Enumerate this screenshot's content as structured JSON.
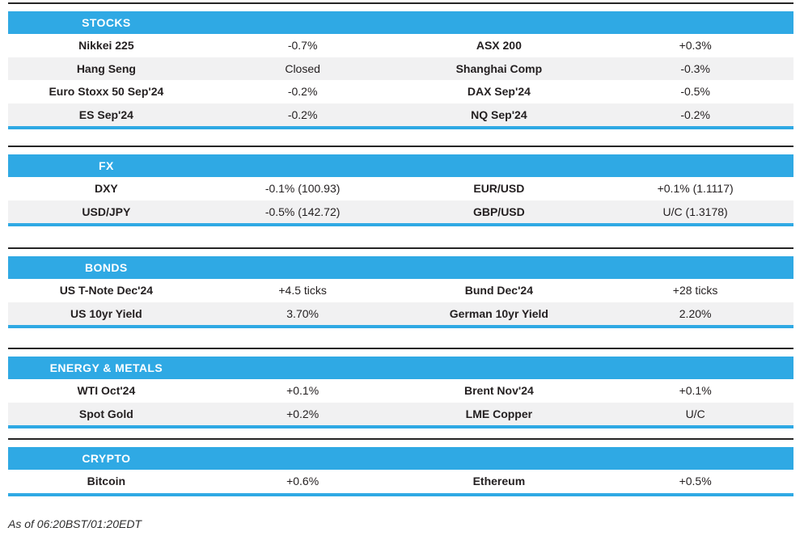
{
  "page": {
    "as_of": "As of 06:20BST/01:20EDT"
  },
  "colors": {
    "accent_blue": "#2fa9e4",
    "row_alt_gray": "#f1f1f2",
    "top_rule_dark": "#252525",
    "text_dark": "#231f20",
    "header_text": "#ffffff"
  },
  "sections": [
    {
      "id": "stocks",
      "title": "STOCKS",
      "rows": [
        {
          "l_label": "Nikkei 225",
          "l_value": "-0.7%",
          "r_label": "ASX 200",
          "r_value": "+0.3%"
        },
        {
          "l_label": "Hang Seng",
          "l_value": "Closed",
          "r_label": "Shanghai Comp",
          "r_value": "-0.3%"
        },
        {
          "l_label": "Euro Stoxx 50 Sep'24",
          "l_value": "-0.2%",
          "r_label": "DAX Sep'24",
          "r_value": "-0.5%"
        },
        {
          "l_label": "ES Sep'24",
          "l_value": "-0.2%",
          "r_label": "NQ Sep'24",
          "r_value": "-0.2%"
        }
      ]
    },
    {
      "id": "fx",
      "title": "FX",
      "rows": [
        {
          "l_label": "DXY",
          "l_value": "-0.1% (100.93)",
          "r_label": "EUR/USD",
          "r_value": "+0.1% (1.1117)"
        },
        {
          "l_label": "USD/JPY",
          "l_value": "-0.5% (142.72)",
          "r_label": "GBP/USD",
          "r_value": "U/C (1.3178)"
        }
      ]
    },
    {
      "id": "bonds",
      "title": "BONDS",
      "rows": [
        {
          "l_label": "US T-Note Dec'24",
          "l_value": "+4.5 ticks",
          "r_label": "Bund Dec'24",
          "r_value": "+28 ticks"
        },
        {
          "l_label": "US 10yr Yield",
          "l_value": "3.70%",
          "r_label": "German 10yr Yield",
          "r_value": "2.20%"
        }
      ]
    },
    {
      "id": "energy-metals",
      "title": "ENERGY & METALS",
      "rows": [
        {
          "l_label": "WTI Oct'24",
          "l_value": "+0.1%",
          "r_label": "Brent Nov'24",
          "r_value": "+0.1%"
        },
        {
          "l_label": "Spot Gold",
          "l_value": "+0.2%",
          "r_label": "LME Copper",
          "r_value": "U/C"
        }
      ]
    },
    {
      "id": "crypto",
      "title": "CRYPTO",
      "rows": [
        {
          "l_label": "Bitcoin",
          "l_value": "+0.6%",
          "r_label": "Ethereum",
          "r_value": "+0.5%"
        }
      ]
    }
  ]
}
